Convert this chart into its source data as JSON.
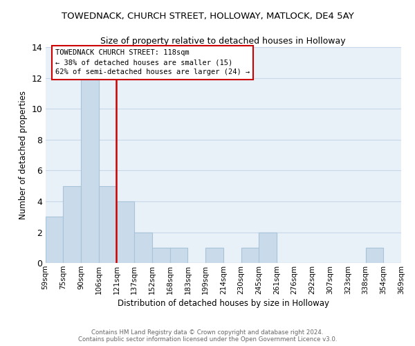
{
  "title": "TOWEDNACK, CHURCH STREET, HOLLOWAY, MATLOCK, DE4 5AY",
  "subtitle": "Size of property relative to detached houses in Holloway",
  "xlabel": "Distribution of detached houses by size in Holloway",
  "ylabel": "Number of detached properties",
  "bar_labels": [
    "59sqm",
    "75sqm",
    "90sqm",
    "106sqm",
    "121sqm",
    "137sqm",
    "152sqm",
    "168sqm",
    "183sqm",
    "199sqm",
    "214sqm",
    "230sqm",
    "245sqm",
    "261sqm",
    "276sqm",
    "292sqm",
    "307sqm",
    "323sqm",
    "338sqm",
    "354sqm",
    "369sqm"
  ],
  "bar_heights": [
    3,
    5,
    12,
    5,
    4,
    2,
    1,
    1,
    0,
    1,
    0,
    1,
    2,
    0,
    0,
    0,
    0,
    0,
    1,
    0
  ],
  "bar_color": "#c9daea",
  "bar_edge_color": "#a8c4d8",
  "annotation_text": "TOWEDNACK CHURCH STREET: 118sqm\n← 38% of detached houses are smaller (15)\n62% of semi-detached houses are larger (24) →",
  "annotation_box_edge": "#cc0000",
  "redline_color": "#cc0000",
  "ylim": [
    0,
    14
  ],
  "yticks": [
    0,
    2,
    4,
    6,
    8,
    10,
    12,
    14
  ],
  "grid_color": "#c8d8e8",
  "footer_line1": "Contains HM Land Registry data © Crown copyright and database right 2024.",
  "footer_line2": "Contains public sector information licensed under the Open Government Licence v3.0.",
  "bg_color": "#ffffff",
  "plot_bg_color": "#e8f0f8"
}
